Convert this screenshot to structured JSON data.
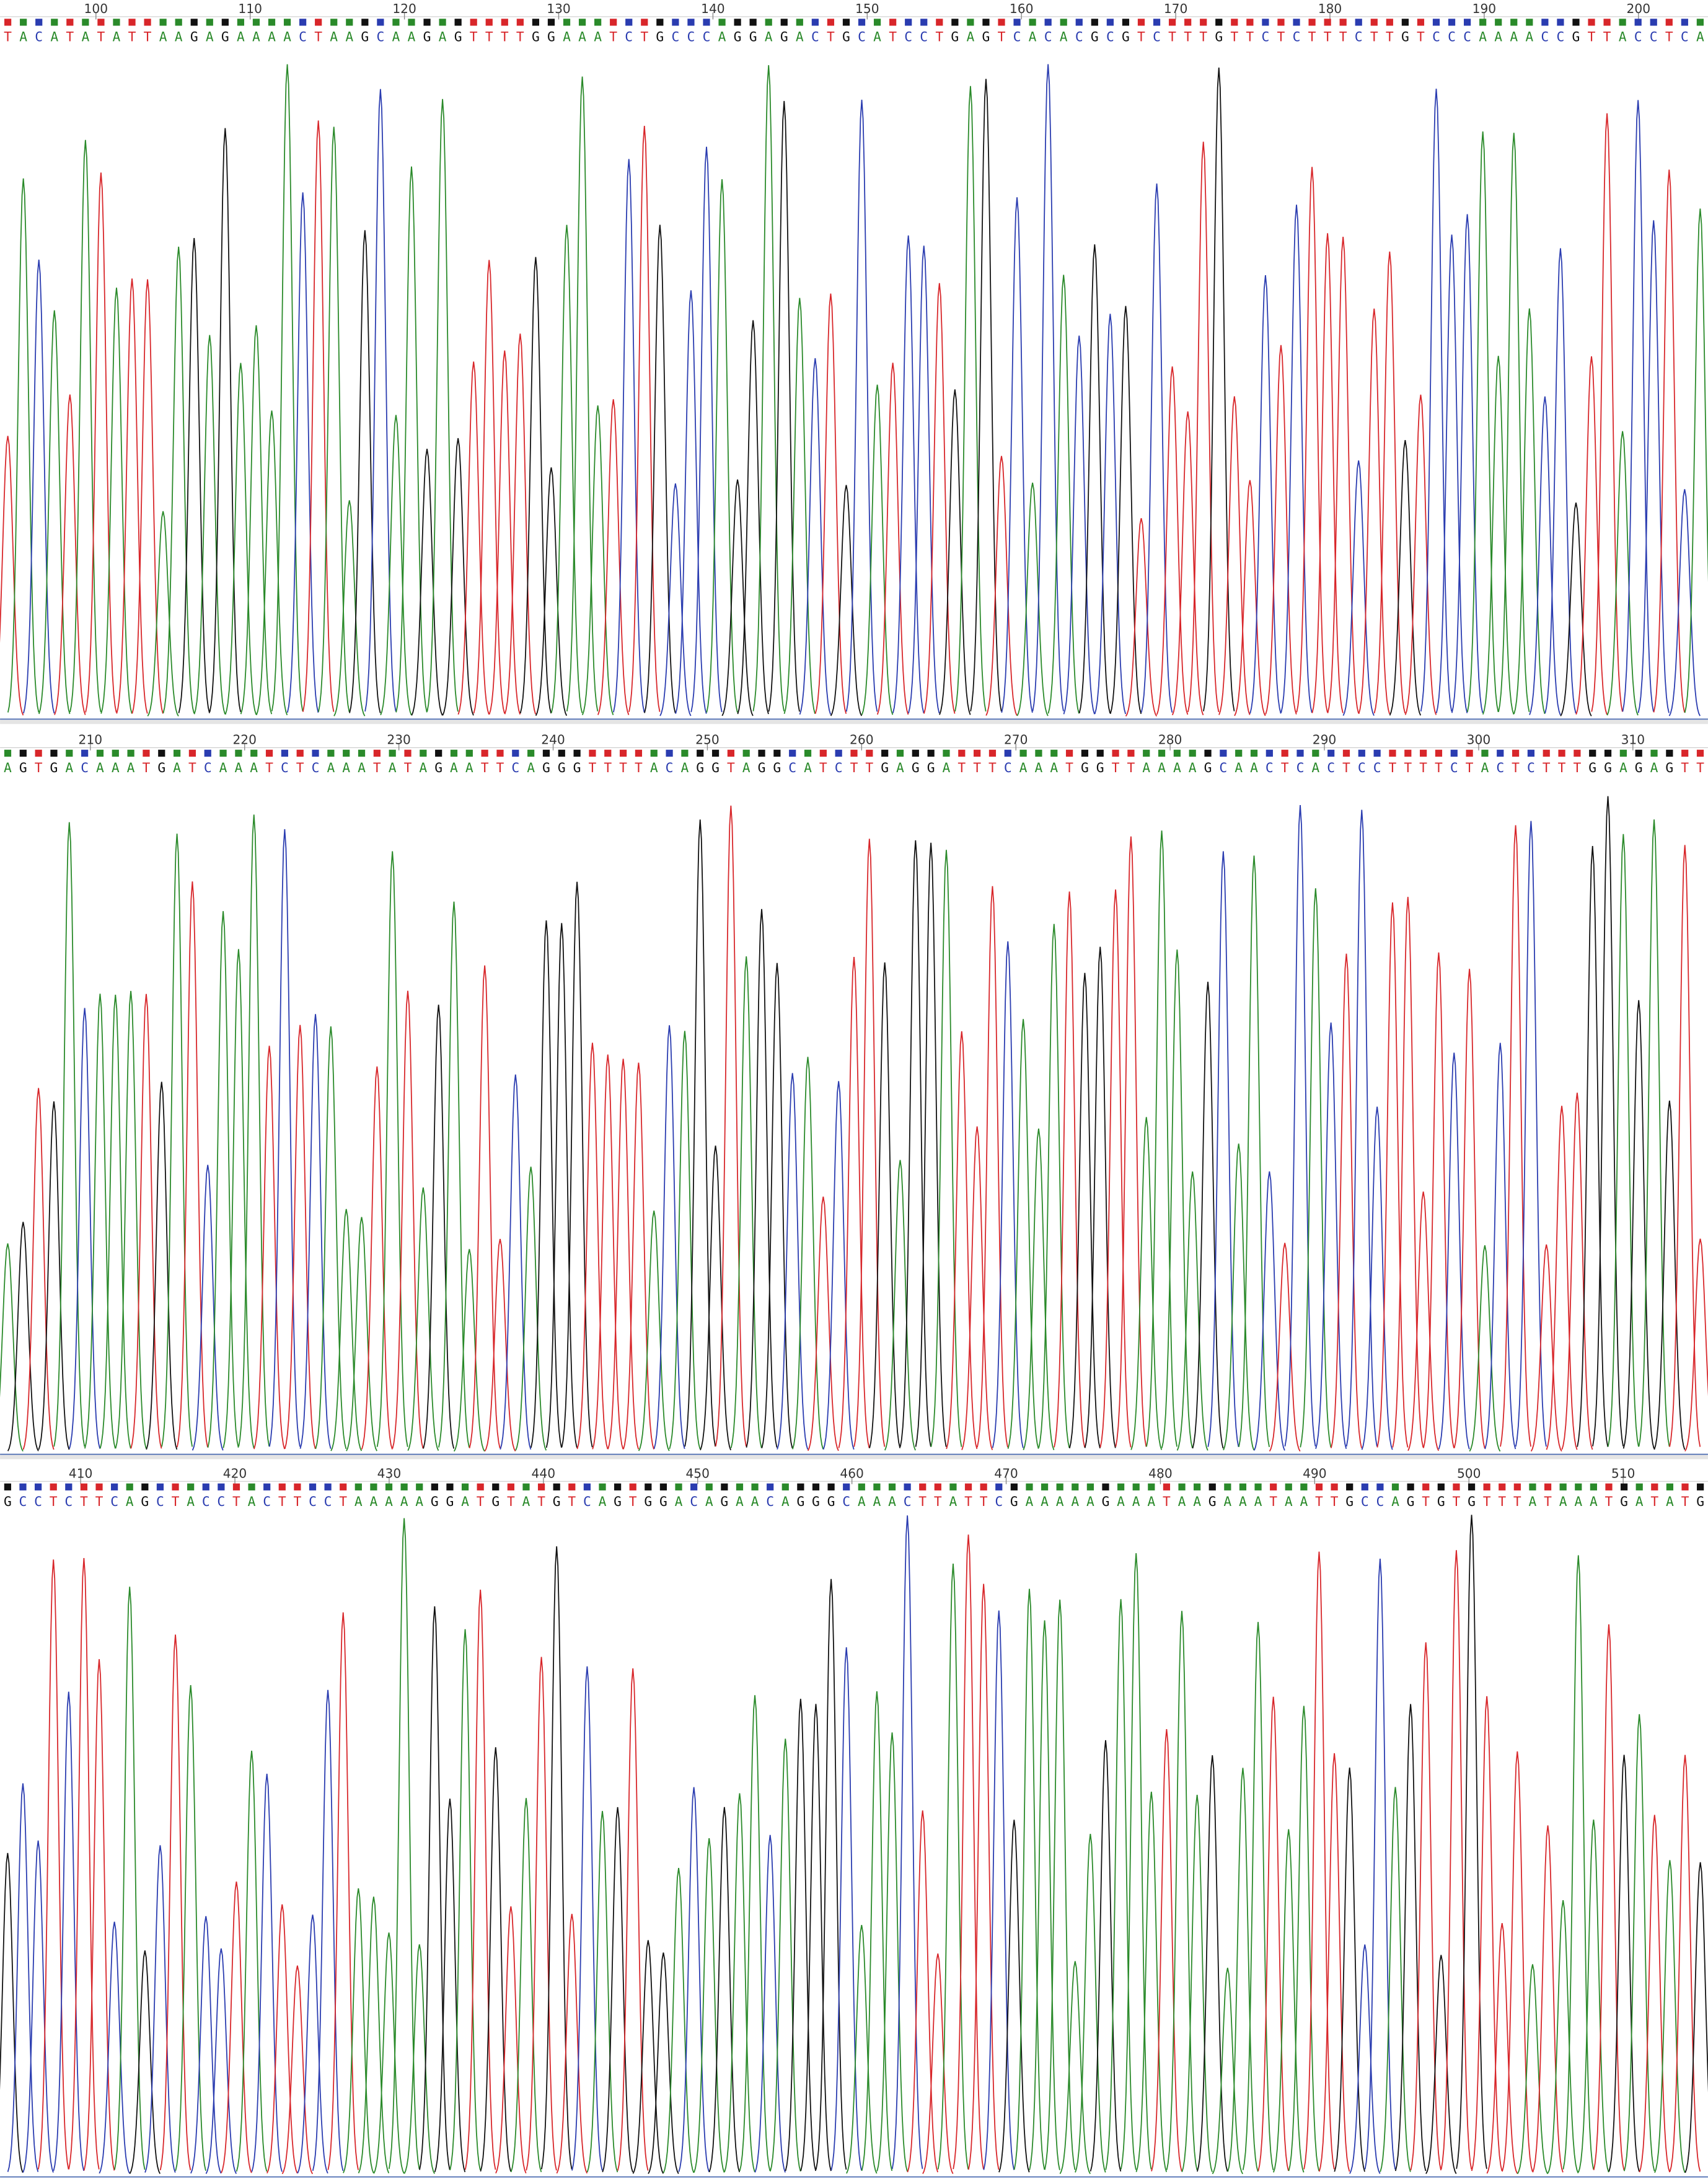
{
  "panels": [
    {
      "ticks": [
        100,
        110,
        120,
        130,
        140,
        150,
        160,
        170,
        180,
        190,
        200
      ],
      "sequence": "TACATATATTAAGAGAAAACTAAGCAAGAGTTTTGGAAATCTGCCCAGGAGACTGCATCCTGAGTCACACGCGTCTTTGTTCTCTTTCTTGTCCCAAAACCGTTACCTCA"
    },
    {
      "ticks": [
        210,
        220,
        230,
        240,
        250,
        260,
        270,
        280,
        290,
        300,
        310
      ],
      "sequence": "AGTGACAAATGATCAAATCTCAAATATAGAATTCAGGGTTTTACAGGTAGGCATCTTGAGGATTTCAAATGGTTAAAAGCAACTCACTCCTTTTCTACTCTTTGGAGAGTT"
    },
    {
      "ticks": [
        410,
        420,
        430,
        440,
        450,
        460,
        470,
        480,
        490,
        500,
        510
      ],
      "sequence": "GCCTCTTCAGCTACCTACTTCCTAAAAAGGATGTATGTCAGTGGACAGAACAGGGCAAACTTATTCGAAAAAGAAATAAGAAATAATTGCCAGTGTGTTTATAAATGATATG"
    }
  ]
}
